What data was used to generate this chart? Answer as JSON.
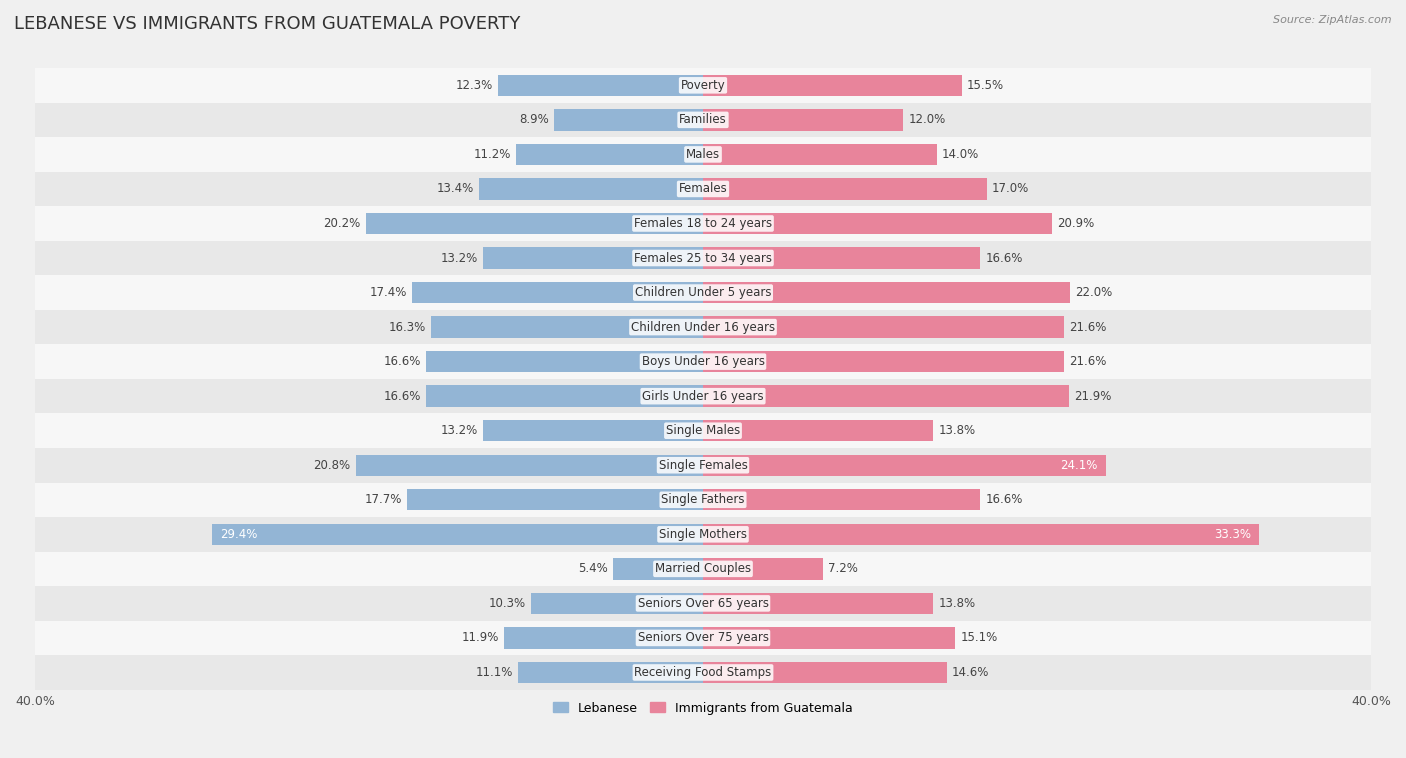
{
  "title": "LEBANESE VS IMMIGRANTS FROM GUATEMALA POVERTY",
  "source": "Source: ZipAtlas.com",
  "categories": [
    "Poverty",
    "Families",
    "Males",
    "Females",
    "Females 18 to 24 years",
    "Females 25 to 34 years",
    "Children Under 5 years",
    "Children Under 16 years",
    "Boys Under 16 years",
    "Girls Under 16 years",
    "Single Males",
    "Single Females",
    "Single Fathers",
    "Single Mothers",
    "Married Couples",
    "Seniors Over 65 years",
    "Seniors Over 75 years",
    "Receiving Food Stamps"
  ],
  "lebanese": [
    12.3,
    8.9,
    11.2,
    13.4,
    20.2,
    13.2,
    17.4,
    16.3,
    16.6,
    16.6,
    13.2,
    20.8,
    17.7,
    29.4,
    5.4,
    10.3,
    11.9,
    11.1
  ],
  "guatemala": [
    15.5,
    12.0,
    14.0,
    17.0,
    20.9,
    16.6,
    22.0,
    21.6,
    21.6,
    21.9,
    13.8,
    24.1,
    16.6,
    33.3,
    7.2,
    13.8,
    15.1,
    14.6
  ],
  "lebanese_color": "#93b5d5",
  "guatemala_color": "#e8849b",
  "background_color": "#f0f0f0",
  "row_bg_light": "#f7f7f7",
  "row_bg_dark": "#e8e8e8",
  "xlim": 40.0,
  "bar_height": 0.62,
  "title_fontsize": 13,
  "label_fontsize": 8.5,
  "category_fontsize": 8.5,
  "legend_fontsize": 9,
  "highlight_lebanese": [
    13
  ],
  "highlight_guatemala": [
    11,
    13
  ]
}
